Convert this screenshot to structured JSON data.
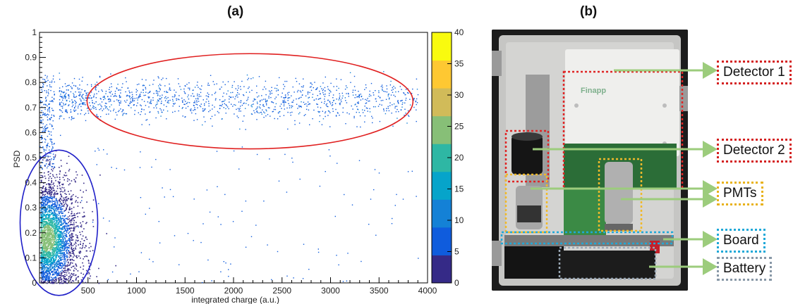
{
  "panels": {
    "a_label": "(a)",
    "b_label": "(b)"
  },
  "chart_data": {
    "type": "heatmap",
    "title": "",
    "xlabel": "integrated charge (a.u.)",
    "ylabel": "PSD",
    "xlim": [
      0,
      4000
    ],
    "ylim": [
      0,
      1
    ],
    "x_ticks": [
      500,
      1000,
      1500,
      2000,
      2500,
      3000,
      3500,
      4000
    ],
    "y_ticks": [
      0,
      0.1,
      0.2,
      0.3,
      0.4,
      0.5,
      0.6,
      0.7,
      0.8,
      0.9,
      1
    ],
    "colorbar": {
      "min": 0,
      "max": 40,
      "ticks": [
        0,
        5,
        10,
        15,
        20,
        25,
        30,
        35,
        40
      ],
      "palette": [
        "#352a87",
        "#0f5cdd",
        "#1481d6",
        "#06a4ca",
        "#2eb7a4",
        "#87bf77",
        "#d1bb59",
        "#fec832",
        "#f9fb0e"
      ]
    },
    "clusters": [
      {
        "name": "",
        "center_x": 2200,
        "center_y": 0.73,
        "spread_x": 1000,
        "spread_y": 0.04,
        "x_range": [
          200,
          3900
        ],
        "density": "sparse",
        "outline_color": "#e02020"
      },
      {
        "name": "",
        "center_x": 150,
        "center_y": 0.18,
        "spread_x": 180,
        "spread_y": 0.12,
        "x_range": [
          0,
          800
        ],
        "density": "dense",
        "outline_color": "#2020c8"
      }
    ],
    "grid": false
  },
  "photo": {
    "brand_text": "Finapp",
    "enclosure_color": "#c8c8c8",
    "detector_color": "#ececec",
    "board_color": "#2e7d3a"
  },
  "callouts": {
    "detector1": "Detector 1",
    "detector2": "Detector 2",
    "pmts": "PMTs",
    "board": "Board",
    "battery": "Battery"
  },
  "colors": {
    "arrow": "#9ccc7c",
    "red_box": "#d42020",
    "yellow_box": "#e8b21a",
    "blue_box": "#1fa8d8",
    "grey_box": "#8797a6"
  }
}
